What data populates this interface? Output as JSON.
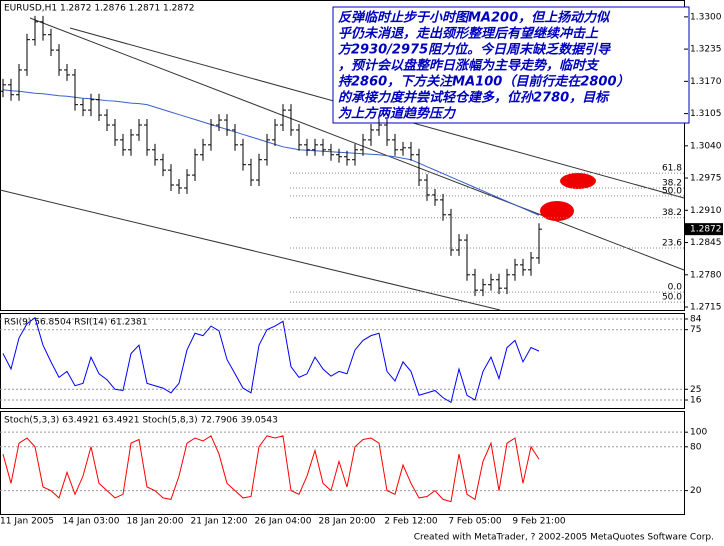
{
  "chart_data": [
    {
      "type": "candlestick",
      "title": "EURUSD,H1 1.2872 1.2876 1.2871 1.2872",
      "categories": [
        null,
        null,
        null,
        "11 Jan 2005",
        null,
        null,
        null,
        null,
        null,
        null,
        null,
        "14 Jan 03:00",
        null,
        null,
        null,
        null,
        null,
        null,
        null,
        "18 Jan 20:00",
        null,
        null,
        null,
        null,
        null,
        null,
        null,
        "21 Jan 12:00",
        null,
        null,
        null,
        null,
        null,
        null,
        null,
        "26 Jan 04:00",
        null,
        null,
        null,
        null,
        null,
        null,
        null,
        "28 Jan 20:00",
        null,
        null,
        null,
        null,
        null,
        null,
        null,
        "2 Feb 12:00",
        null,
        null,
        null,
        null,
        null,
        null,
        null,
        "7 Feb 05:00",
        null,
        null,
        null,
        null,
        null,
        null,
        null,
        "9 Feb 21:00"
      ],
      "open": [
        1.315,
        1.3163,
        1.3143,
        1.3193,
        1.3254,
        1.329,
        1.3264,
        1.3233,
        1.3193,
        1.3183,
        1.3123,
        1.3112,
        1.3133,
        1.3102,
        1.3082,
        1.3052,
        1.3032,
        1.3062,
        1.3082,
        1.3032,
        1.3012,
        1.2991,
        1.2961,
        1.2955,
        1.2981,
        1.3022,
        1.3042,
        1.3082,
        1.3092,
        1.3072,
        1.3042,
        1.3002,
        1.2971,
        1.3012,
        1.3052,
        1.3082,
        1.3112,
        1.3072,
        1.3042,
        1.3032,
        1.3042,
        1.3032,
        1.3022,
        1.3018,
        1.3012,
        1.3032,
        1.3052,
        1.3072,
        1.3082,
        1.3052,
        1.3032,
        1.3036,
        1.3022,
        1.2971,
        1.2941,
        1.2931,
        1.2901,
        1.283,
        1.285,
        1.278,
        1.2749,
        1.276,
        1.277,
        1.2753,
        1.278,
        1.28,
        1.279,
        1.2814
      ],
      "high": [
        1.3175,
        1.3175,
        1.3205,
        1.3266,
        1.3302,
        1.3302,
        1.3276,
        1.3245,
        1.3205,
        1.3195,
        1.3135,
        1.3145,
        1.3145,
        1.3114,
        1.3094,
        1.3064,
        1.3074,
        1.3094,
        1.3094,
        1.3044,
        1.3024,
        1.3003,
        1.2973,
        1.2993,
        1.3034,
        1.3054,
        1.3094,
        1.3104,
        1.3104,
        1.3084,
        1.3054,
        1.3014,
        1.3024,
        1.3064,
        1.3094,
        1.3124,
        1.3124,
        1.3084,
        1.3054,
        1.3054,
        1.3054,
        1.3044,
        1.3034,
        1.303,
        1.3044,
        1.3064,
        1.3084,
        1.3094,
        1.3094,
        1.3064,
        1.3048,
        1.3048,
        1.3034,
        1.2983,
        1.2953,
        1.2943,
        1.2913,
        1.2862,
        1.2862,
        1.2792,
        1.2772,
        1.2782,
        1.2782,
        1.2792,
        1.2812,
        1.2812,
        1.2826,
        1.2884
      ],
      "low": [
        1.3138,
        1.3131,
        1.3131,
        1.3181,
        1.3242,
        1.3252,
        1.3221,
        1.3181,
        1.3171,
        1.3111,
        1.31,
        1.31,
        1.309,
        1.307,
        1.304,
        1.302,
        1.302,
        1.305,
        1.302,
        1.3,
        1.2979,
        1.2949,
        1.2943,
        1.2943,
        1.2969,
        1.301,
        1.303,
        1.307,
        1.306,
        1.303,
        1.299,
        1.2959,
        1.2959,
        1.3,
        1.304,
        1.307,
        1.306,
        1.303,
        1.302,
        1.302,
        1.302,
        1.301,
        1.3006,
        1.3,
        1.3,
        1.302,
        1.304,
        1.306,
        1.304,
        1.302,
        1.302,
        1.301,
        1.2959,
        1.2929,
        1.2919,
        1.2889,
        1.2818,
        1.2818,
        1.2768,
        1.2737,
        1.2737,
        1.2748,
        1.2741,
        1.2741,
        1.2768,
        1.2778,
        1.2778,
        1.2802
      ],
      "close": [
        1.3163,
        1.3143,
        1.3193,
        1.3254,
        1.329,
        1.3264,
        1.3233,
        1.3193,
        1.3183,
        1.3123,
        1.3112,
        1.3133,
        1.3102,
        1.3082,
        1.3052,
        1.3032,
        1.3062,
        1.3082,
        1.3032,
        1.3012,
        1.2991,
        1.2961,
        1.2955,
        1.2981,
        1.3022,
        1.3042,
        1.3082,
        1.3092,
        1.3072,
        1.3042,
        1.3002,
        1.2971,
        1.3012,
        1.3052,
        1.3082,
        1.3112,
        1.3072,
        1.3042,
        1.3032,
        1.3042,
        1.3032,
        1.3022,
        1.3018,
        1.3012,
        1.3032,
        1.3052,
        1.3072,
        1.3082,
        1.3052,
        1.3032,
        1.3036,
        1.3022,
        1.2971,
        1.2941,
        1.2931,
        1.2901,
        1.283,
        1.285,
        1.278,
        1.2749,
        1.276,
        1.277,
        1.2753,
        1.278,
        1.28,
        1.279,
        1.2814,
        1.2872
      ],
      "series": [
        {
          "color": "#3a5fcd",
          "values": [
            1.3153,
            1.3151,
            1.315,
            1.3148,
            1.3146,
            1.3145,
            1.3143,
            1.3141,
            1.314,
            1.3138,
            1.3136,
            1.3135,
            1.3133,
            1.3131,
            1.313,
            1.3128,
            1.3126,
            1.3125,
            1.3123,
            1.3118,
            1.3113,
            1.3108,
            1.3103,
            1.3098,
            1.3093,
            1.3088,
            1.3083,
            1.3078,
            1.3073,
            1.3068,
            1.3063,
            1.3058,
            1.3053,
            1.3048,
            1.3043,
            1.3038,
            1.3035,
            1.3032,
            1.3031,
            1.303,
            1.3029,
            1.3028,
            1.3027,
            1.3026,
            1.3025,
            1.3024,
            1.3023,
            1.3022,
            1.302,
            1.3018,
            1.3015,
            1.3012,
            1.3005,
            1.2998,
            1.2991,
            1.2984,
            1.2977,
            1.297,
            1.2963,
            1.2956,
            1.2949,
            1.2942,
            1.2935,
            1.2928,
            1.2921,
            1.2914,
            1.2907,
            1.29
          ]
        }
      ],
      "color": "#000000",
      "ylim": [
        1.2709,
        1.3334
      ],
      "yticks": [
        {
          "value": 1.33,
          "label": "1.3300"
        },
        1.3235,
        {
          "value": 1.317,
          "label": "1.3170"
        },
        1.3105,
        {
          "value": 1.304,
          "label": "1.3040"
        },
        1.2975,
        {
          "value": 1.291,
          "label": "1.2910"
        },
        1.2845,
        {
          "value": 1.278,
          "label": "1.2780"
        },
        1.2715
      ],
      "fib_levels": [
        {
          "value": 1.2985,
          "label": "61.8"
        },
        {
          "value": 1.2955,
          "label": "38.2"
        },
        {
          "value": 1.2939,
          "label": "50.0"
        },
        {
          "value": 1.2895,
          "label": "38.2"
        },
        {
          "value": 1.2834,
          "label": "23.6"
        },
        {
          "value": 1.2745,
          "label": "0.0"
        },
        {
          "value": 1.2725,
          "label": "50.0"
        }
      ],
      "annotation": [
        "反弹临时止步于小时图MA200，但上扬动力似",
        "乎仍未消退，走出颈形整理后有望继续冲击上",
        "方2930/2975阻力位。今日周末缺乏数据引导",
        "，预计会以盘整昨日涨幅为主导走势，临时支",
        "持2860，下方关注MA100（目前行走在2800）",
        "的承接力度并尝试轻仓建多，位孙2780，目标",
        "为上方两道趋势压力"
      ]
    },
    {
      "type": "line",
      "title": "RSI(9) 56.8504 RSI(14) 61.2381",
      "series": [
        {
          "color": "#0000ff",
          "values": [
            55,
            42,
            68,
            80,
            85,
            62,
            48,
            35,
            40,
            28,
            30,
            52,
            38,
            33,
            25,
            24,
            55,
            62,
            30,
            28,
            26,
            22,
            30,
            58,
            72,
            70,
            78,
            74,
            50,
            38,
            26,
            22,
            62,
            75,
            78,
            82,
            44,
            35,
            38,
            52,
            42,
            36,
            40,
            38,
            58,
            66,
            70,
            72,
            40,
            32,
            48,
            40,
            20,
            22,
            24,
            18,
            14,
            42,
            20,
            16,
            40,
            52,
            34,
            60,
            66,
            48,
            60,
            57
          ]
        }
      ],
      "ylim": [
        9.3,
        89
      ],
      "yticks": [
        84,
        75,
        25,
        16
      ]
    },
    {
      "type": "line",
      "title": "Stoch(5,3,3) 63.4921 63.4921 Stoch(5,8,3) 72.7906 39.0543",
      "series": [
        {
          "color": "#ff0000",
          "values": [
            70,
            30,
            85,
            92,
            80,
            25,
            20,
            10,
            45,
            15,
            40,
            80,
            30,
            20,
            10,
            15,
            85,
            90,
            25,
            20,
            10,
            8,
            40,
            85,
            92,
            88,
            95,
            70,
            30,
            20,
            10,
            12,
            80,
            95,
            92,
            95,
            20,
            15,
            40,
            75,
            30,
            20,
            60,
            25,
            80,
            90,
            92,
            85,
            20,
            15,
            55,
            30,
            10,
            12,
            20,
            8,
            5,
            70,
            15,
            8,
            60,
            85,
            20,
            85,
            92,
            30,
            80,
            63
          ]
        }
      ],
      "ylim": [
        -12,
        129
      ],
      "yticks": [
        100,
        80,
        20
      ]
    }
  ],
  "footer": "Created with MetaTrader, ? 2002-2005 MetaQuotes Software Corp."
}
